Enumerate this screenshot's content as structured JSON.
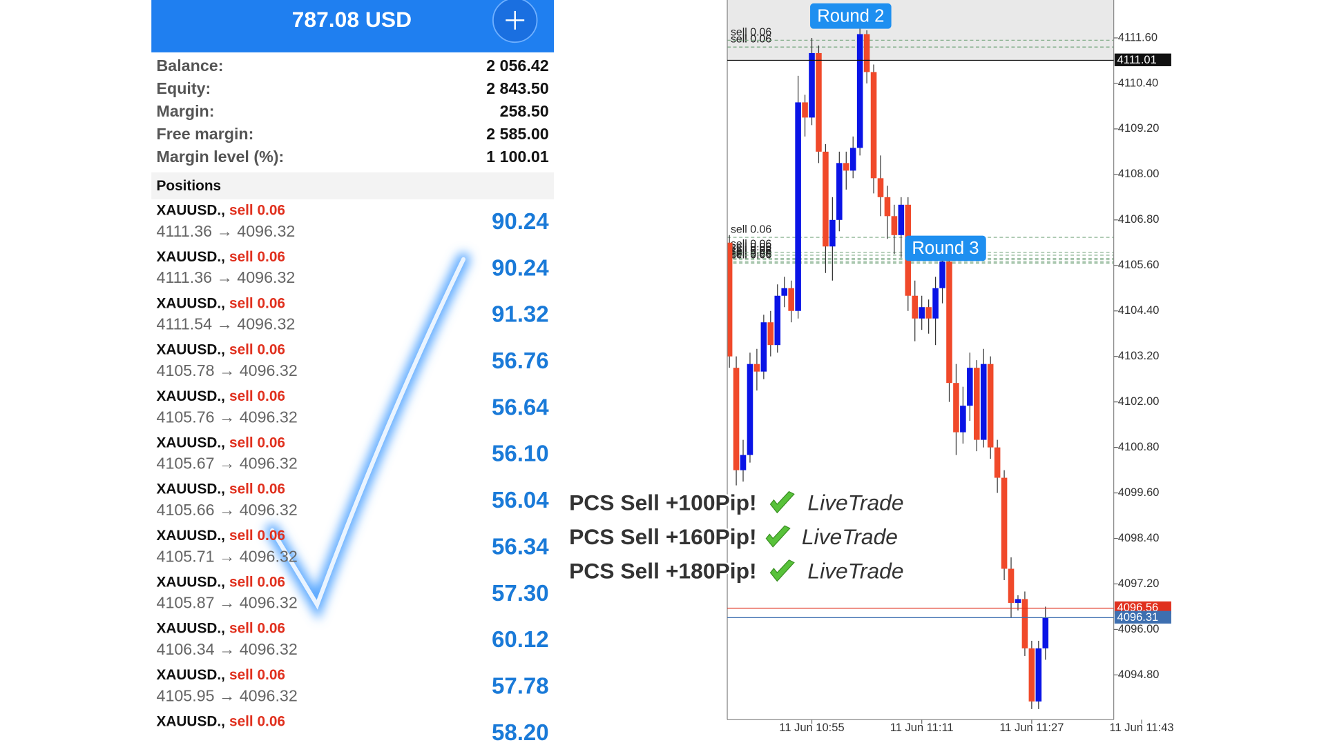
{
  "account": {
    "header": "787.08 USD",
    "rows": [
      {
        "label": "Balance:",
        "value": "2 056.42"
      },
      {
        "label": "Equity:",
        "value": "2 843.50"
      },
      {
        "label": "Margin:",
        "value": "258.50"
      },
      {
        "label": "Free margin:",
        "value": "2 585.00"
      },
      {
        "label": "Margin level (%):",
        "value": "1 100.01"
      }
    ]
  },
  "positions_title": "Positions",
  "positions": [
    {
      "symbol": "XAUUSD.,",
      "side": "sell 0.06",
      "prices": "4111.36 → 4096.32",
      "profit": "90.24"
    },
    {
      "symbol": "XAUUSD.,",
      "side": "sell 0.06",
      "prices": "4111.36 → 4096.32",
      "profit": "90.24"
    },
    {
      "symbol": "XAUUSD.,",
      "side": "sell 0.06",
      "prices": "4111.54 → 4096.32",
      "profit": "91.32"
    },
    {
      "symbol": "XAUUSD.,",
      "side": "sell 0.06",
      "prices": "4105.78 → 4096.32",
      "profit": "56.76"
    },
    {
      "symbol": "XAUUSD.,",
      "side": "sell 0.06",
      "prices": "4105.76 → 4096.32",
      "profit": "56.64"
    },
    {
      "symbol": "XAUUSD.,",
      "side": "sell 0.06",
      "prices": "4105.67 → 4096.32",
      "profit": "56.10"
    },
    {
      "symbol": "XAUUSD.,",
      "side": "sell 0.06",
      "prices": "4105.66 → 4096.32",
      "profit": "56.04"
    },
    {
      "symbol": "XAUUSD.,",
      "side": "sell 0.06",
      "prices": "4105.71 → 4096.32",
      "profit": "56.34"
    },
    {
      "symbol": "XAUUSD.,",
      "side": "sell 0.06",
      "prices": "4105.87 → 4096.32",
      "profit": "57.30"
    },
    {
      "symbol": "XAUUSD.,",
      "side": "sell 0.06",
      "prices": "4106.34 → 4096.32",
      "profit": "60.12"
    },
    {
      "symbol": "XAUUSD.,",
      "side": "sell 0.06",
      "prices": "4105.95 → 4096.32",
      "profit": "57.78"
    },
    {
      "symbol": "XAUUSD.,",
      "side": "sell 0.06",
      "profit": "58.20"
    }
  ],
  "overlay": [
    {
      "text": "PCS Sell +100Pip!",
      "tag": "LiveTrade"
    },
    {
      "text": "PCS Sell +160Pip!",
      "tag": "LiveTrade"
    },
    {
      "text": "PCS Sell +180Pip!",
      "tag": "LiveTrade"
    }
  ],
  "chart_data": {
    "type": "candlestick",
    "categories": [
      null,
      null,
      null,
      null,
      null,
      null,
      null,
      null,
      null,
      null,
      null,
      null,
      "11 Jun 10:55",
      null,
      null,
      null,
      null,
      null,
      null,
      null,
      null,
      null,
      null,
      null,
      null,
      null,
      null,
      null,
      "11 Jun 11:11",
      null,
      null,
      null,
      null,
      null,
      null,
      null,
      null,
      null,
      null,
      null,
      null,
      null,
      null,
      null,
      "11 Jun 11:27",
      null,
      null,
      null,
      null,
      null,
      null,
      null,
      null,
      null,
      null,
      null,
      null,
      null,
      null,
      null,
      "11 Jun 11:43"
    ],
    "open": [
      4106.2,
      4102.9,
      4100.2,
      4100.6,
      4103.0,
      4102.8,
      4104.1,
      4103.5,
      4104.8,
      4105.0,
      4104.4,
      4109.9,
      4109.5,
      4111.2,
      4108.6,
      4106.1,
      4106.8,
      4108.3,
      4108.1,
      4108.7,
      4111.7,
      4110.7,
      4107.9,
      4107.4,
      4106.9,
      4106.4,
      4107.2,
      4104.8,
      4104.2,
      4104.5,
      4104.2,
      4105.0,
      4105.7,
      4102.5,
      4101.2,
      4101.9,
      4102.9,
      4101.0,
      4103.0,
      4100.8,
      4100.0,
      4097.6,
      4096.7,
      4096.8,
      4095.5,
      4094.1,
      4095.5,
      null,
      null,
      null,
      null,
      null,
      null,
      null,
      null,
      null,
      null,
      null,
      null,
      null,
      null
    ],
    "high": [
      4106.4,
      4103.2,
      4101.0,
      4103.3,
      4103.4,
      4104.3,
      4104.4,
      4105.1,
      4105.3,
      4105.2,
      4110.6,
      4110.1,
      4111.6,
      4111.4,
      4108.8,
      4107.4,
      4108.6,
      4108.6,
      4109.0,
      4111.9,
      4111.8,
      4110.9,
      4108.5,
      4107.7,
      4107.2,
      4107.4,
      4107.4,
      4105.2,
      4104.8,
      4104.7,
      4105.3,
      4106.0,
      4105.9,
      4103.0,
      4102.4,
      4103.3,
      4103.1,
      4103.4,
      4103.2,
      4101.0,
      4100.2,
      4097.9,
      4096.9,
      4097.0,
      4095.7,
      4095.7,
      4096.6,
      null,
      null,
      null,
      null,
      null,
      null,
      null,
      null,
      null,
      null,
      null,
      null,
      null,
      null
    ],
    "low": [
      4102.9,
      4099.8,
      4099.9,
      4100.4,
      4102.3,
      4102.6,
      4103.2,
      4103.3,
      4104.5,
      4104.1,
      4104.2,
      4109.0,
      4109.3,
      4108.3,
      4105.4,
      4105.2,
      4106.5,
      4107.6,
      4107.9,
      4108.5,
      4110.4,
      4107.5,
      4106.9,
      4106.3,
      4105.9,
      4105.8,
      4104.4,
      4103.6,
      4103.9,
      4103.8,
      4103.5,
      4104.6,
      4102.0,
      4100.6,
      4100.9,
      4101.5,
      4100.7,
      4100.8,
      4100.5,
      4099.6,
      4097.3,
      4096.3,
      4096.5,
      4095.3,
      4093.9,
      4093.9,
      4095.2,
      null,
      null,
      null,
      null,
      null,
      null,
      null,
      null,
      null,
      null,
      null,
      null,
      null,
      null
    ],
    "close": [
      4103.2,
      4100.2,
      4100.6,
      4103.0,
      4102.8,
      4104.1,
      4103.5,
      4104.8,
      4105.0,
      4104.4,
      4109.9,
      4109.5,
      4111.2,
      4108.6,
      4106.1,
      4106.8,
      4108.3,
      4108.1,
      4108.7,
      4111.7,
      4110.7,
      4107.9,
      4107.4,
      4106.9,
      4106.4,
      4107.2,
      4104.8,
      4104.2,
      4104.5,
      4104.2,
      4105.0,
      4105.7,
      4102.5,
      4101.2,
      4101.9,
      4102.9,
      4101.0,
      4103.0,
      4100.8,
      4100.0,
      4097.6,
      4096.7,
      4096.8,
      4095.5,
      4094.1,
      4095.5,
      4096.3,
      null,
      null,
      null,
      null,
      null,
      null,
      null,
      null,
      null,
      null,
      null,
      null,
      null,
      null
    ],
    "up_color": "#0a14e6",
    "down_color": "#f0492a",
    "ylim": [
      4093.62,
      4112.6
    ],
    "yticks": [
      {
        "value": 4111.6,
        "label": "4111.60"
      },
      {
        "value": 4110.4,
        "label": "4110.40"
      },
      {
        "value": 4109.2,
        "label": "4109.20"
      },
      {
        "value": 4108,
        "label": "4108.00"
      },
      {
        "value": 4106.8,
        "label": "4106.80"
      },
      {
        "value": 4105.6,
        "label": "4105.60"
      },
      {
        "value": 4104.4,
        "label": "4104.40"
      },
      {
        "value": 4103.2,
        "label": "4103.20"
      },
      {
        "value": 4102,
        "label": "4102.00"
      },
      {
        "value": 4100.8,
        "label": "4100.80"
      },
      {
        "value": 4099.6,
        "label": "4099.60"
      },
      {
        "value": 4098.4,
        "label": "4098.40"
      },
      {
        "value": 4097.2,
        "label": "4097.20"
      },
      {
        "value": 4096,
        "label": "4096.00"
      },
      {
        "value": 4094.8,
        "label": "4094.80"
      }
    ],
    "price_lines": [
      {
        "value": 4111.01,
        "label": "4111.01",
        "color": "#111111"
      },
      {
        "value": 4096.56,
        "label": "4096.56",
        "color": "#e0301e"
      },
      {
        "value": 4096.31,
        "label": "4096.31",
        "color": "#3d6fb0"
      }
    ],
    "orders": [
      {
        "value": 4111.36,
        "label": "sell 0.06"
      },
      {
        "value": 4111.36,
        "label": "sell 0.06"
      },
      {
        "value": 4111.54,
        "label": "sell 0.06"
      },
      {
        "value": 4105.78,
        "label": "sell 0.06"
      },
      {
        "value": 4105.76,
        "label": "sell 0.06"
      },
      {
        "value": 4105.67,
        "label": "sell 0.06"
      },
      {
        "value": 4105.66,
        "label": "sell 0.06"
      },
      {
        "value": 4105.71,
        "label": "sell 0.06"
      },
      {
        "value": 4105.87,
        "label": "sell 0.06"
      },
      {
        "value": 4106.34,
        "label": "sell 0.06"
      },
      {
        "value": 4105.95,
        "label": "sell 0.06"
      }
    ],
    "annotations": [
      "Round 2",
      "Round 3"
    ]
  }
}
